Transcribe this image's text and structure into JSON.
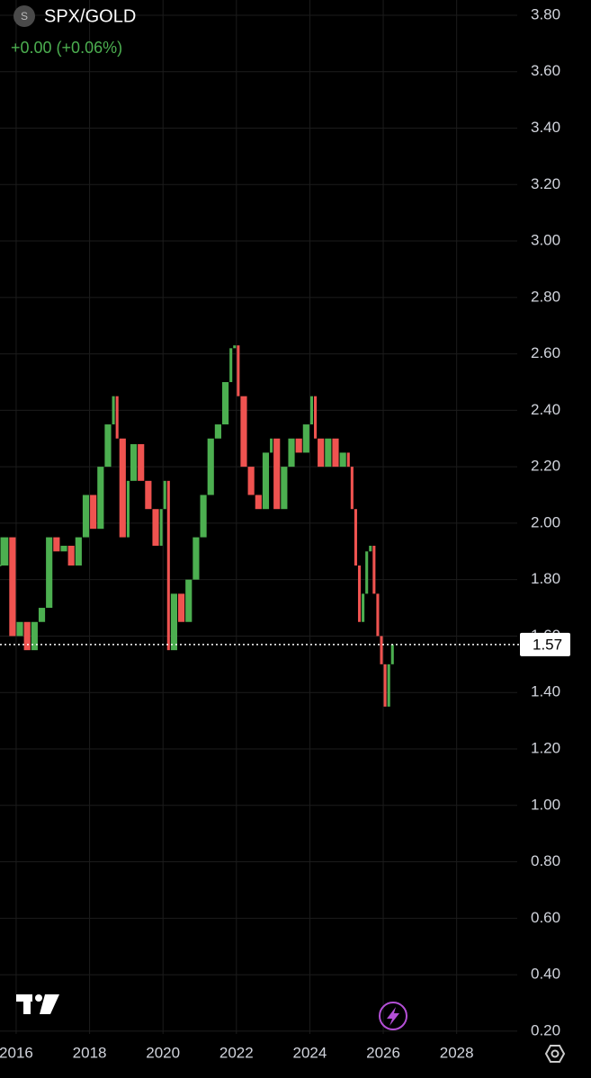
{
  "header": {
    "symbol_icon": "S",
    "symbol": "SPX/GOLD",
    "change": "+0.00 (+0.06%)"
  },
  "chart_data": {
    "type": "candlestick",
    "x": [
      2015.56,
      2015.8,
      2016.0,
      2016.2,
      2016.4,
      2016.6,
      2016.8,
      2017.0,
      2017.2,
      2017.4,
      2017.6,
      2017.8,
      2018.0,
      2018.2,
      2018.4,
      2018.6,
      2018.7,
      2018.8,
      2019.0,
      2019.1,
      2019.3,
      2019.5,
      2019.7,
      2019.9,
      2020.0,
      2020.1,
      2020.2,
      2020.4,
      2020.6,
      2020.8,
      2021.0,
      2021.2,
      2021.4,
      2021.6,
      2021.8,
      2021.9,
      2022.0,
      2022.1,
      2022.3,
      2022.5,
      2022.7,
      2022.9,
      2023.0,
      2023.2,
      2023.4,
      2023.6,
      2023.8,
      2024.0,
      2024.1,
      2024.2,
      2024.4,
      2024.6,
      2024.8,
      2025.0,
      2025.1,
      2025.2,
      2025.3,
      2025.4,
      2025.5,
      2025.6,
      2025.7,
      2025.8,
      2025.9,
      2026.0,
      2026.1,
      2026.2,
      2026.3
    ],
    "series": [
      {
        "name": "SPX/GOLD",
        "up_color": "#4caf50",
        "down_color": "#ef5350",
        "values": [
          1.85,
          1.95,
          1.6,
          1.65,
          1.55,
          1.65,
          1.7,
          1.95,
          1.9,
          1.92,
          1.85,
          1.95,
          2.1,
          1.98,
          2.2,
          2.35,
          2.45,
          2.3,
          1.95,
          2.15,
          2.28,
          2.15,
          2.05,
          1.92,
          2.05,
          2.15,
          1.55,
          1.75,
          1.65,
          1.8,
          1.95,
          2.1,
          2.3,
          2.35,
          2.5,
          2.62,
          2.63,
          2.45,
          2.2,
          2.1,
          2.05,
          2.25,
          2.3,
          2.05,
          2.2,
          2.3,
          2.25,
          2.35,
          2.45,
          2.3,
          2.2,
          2.3,
          2.2,
          2.25,
          2.2,
          2.05,
          1.85,
          1.65,
          1.75,
          1.9,
          1.92,
          1.75,
          1.6,
          1.5,
          1.35,
          1.5,
          1.57
        ]
      }
    ],
    "last_price": 1.57,
    "xlim": [
      2015.56,
      2029.65
    ],
    "xticks": [
      2016,
      2018,
      2020,
      2022,
      2024,
      2026,
      2028
    ],
    "ylim": [
      0.19,
      3.854
    ],
    "yticks": [
      {
        "value": 0.2,
        "label": "0.20"
      },
      {
        "value": 0.4,
        "label": "0.40"
      },
      {
        "value": 0.6,
        "label": "0.60"
      },
      {
        "value": 0.8,
        "label": "0.80"
      },
      {
        "value": 1.0,
        "label": "1.00"
      },
      {
        "value": 1.2,
        "label": "1.20"
      },
      {
        "value": 1.4,
        "label": "1.40"
      },
      {
        "value": 1.6,
        "label": "1.60"
      },
      {
        "value": 1.8,
        "label": "1.80"
      },
      {
        "value": 2.0,
        "label": "2.00"
      },
      {
        "value": 2.2,
        "label": "2.20"
      },
      {
        "value": 2.4,
        "label": "2.40"
      },
      {
        "value": 2.6,
        "label": "2.60"
      },
      {
        "value": 2.8,
        "label": "2.80"
      },
      {
        "value": 3.0,
        "label": "3.00"
      },
      {
        "value": 3.2,
        "label": "3.20"
      },
      {
        "value": 3.4,
        "label": "3.40"
      },
      {
        "value": 3.6,
        "label": "3.60"
      },
      {
        "value": 3.8,
        "label": "3.80"
      }
    ],
    "grid": true
  }
}
